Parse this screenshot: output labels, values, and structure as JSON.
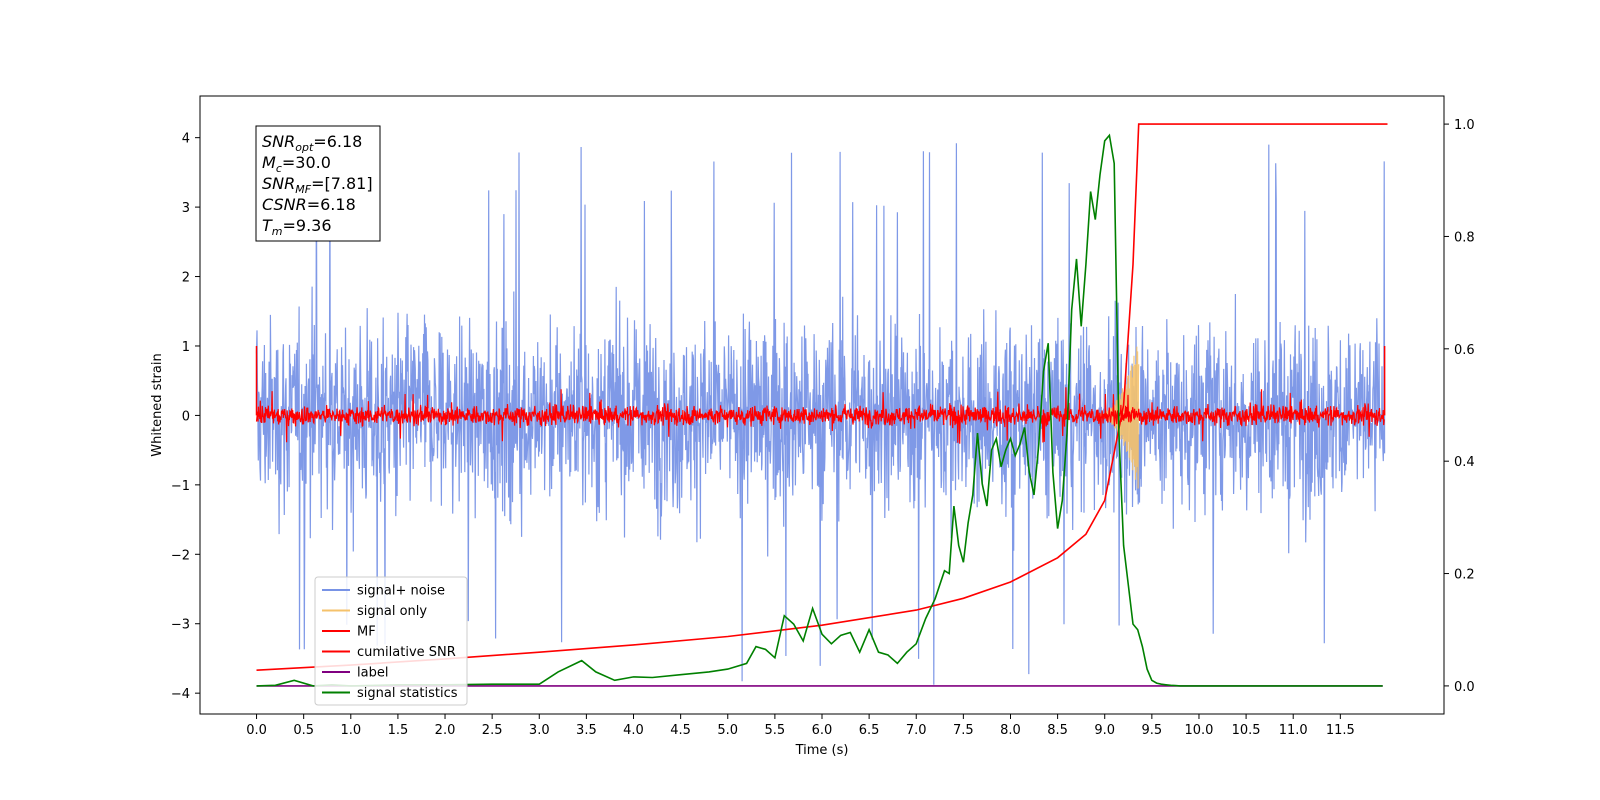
{
  "chart_data": {
    "type": "line",
    "xlabel": "Time (s)",
    "ylabel": "Whitened strain",
    "x_ticks": [
      "0.0",
      "0.5",
      "1.0",
      "1.5",
      "2.0",
      "2.5",
      "3.0",
      "3.5",
      "4.0",
      "4.5",
      "5.0",
      "5.5",
      "6.0",
      "6.5",
      "7.0",
      "7.5",
      "8.0",
      "8.5",
      "9.0",
      "9.5",
      "10.0",
      "10.5",
      "11.0",
      "11.5"
    ],
    "y_ticks_left": [
      "−4",
      "−3",
      "−2",
      "−1",
      "0",
      "1",
      "2",
      "3",
      "4"
    ],
    "y_ticks_right": [
      "0.0",
      "0.2",
      "0.4",
      "0.6",
      "0.8",
      "1.0"
    ],
    "xlim": [
      -0.6,
      12.6
    ],
    "ylim_left": [
      -4.3,
      4.6
    ],
    "ylim_right": [
      -0.05,
      1.05
    ],
    "legend_placement": "lower-left",
    "annotation": [
      {
        "name": "SNR",
        "sub": "opt",
        "value": "=6.18"
      },
      {
        "name": "M",
        "sub": "c",
        "value": "=30.0"
      },
      {
        "name": "SNR",
        "sub": "MF",
        "value": "=[7.81]"
      },
      {
        "name": "CSNR",
        "sub": "",
        "value": "=6.18"
      },
      {
        "name": "T",
        "sub": "m",
        "value": "=9.36"
      }
    ],
    "series": [
      {
        "name": "signal+ noise",
        "color": "#7893e6",
        "axis": "left",
        "description": "noise band roughly -2.6..2.6 with spikes to about ±4"
      },
      {
        "name": "signal only",
        "color": "#f5c26b",
        "axis": "left",
        "description": "chirp peaking near t=9.3 with amplitude about 1"
      },
      {
        "name": "MF",
        "color": "#ff0000",
        "axis": "left",
        "description": "noise band about ±0.3 around 0"
      },
      {
        "name": "cumilative SNR",
        "color": "#ff0000",
        "axis": "right",
        "x": [
          0.0,
          1.0,
          2.0,
          3.0,
          4.0,
          5.0,
          6.0,
          7.0,
          7.5,
          8.0,
          8.5,
          8.8,
          9.0,
          9.2,
          9.3,
          9.36,
          12.0
        ],
        "y": [
          0.028,
          0.037,
          0.048,
          0.06,
          0.073,
          0.088,
          0.108,
          0.135,
          0.156,
          0.185,
          0.228,
          0.27,
          0.33,
          0.5,
          0.75,
          1.0,
          1.0
        ]
      },
      {
        "name": "label",
        "color": "#800080",
        "axis": "right",
        "x": [
          0.0,
          11.95
        ],
        "y": [
          0.0,
          0.0
        ]
      },
      {
        "name": "signal statistics",
        "color": "#008000",
        "axis": "right",
        "x": [
          0.0,
          0.2,
          0.4,
          0.6,
          0.8,
          1.0,
          1.5,
          2.0,
          2.5,
          3.0,
          3.2,
          3.45,
          3.6,
          3.8,
          4.0,
          4.2,
          4.5,
          4.8,
          5.0,
          5.2,
          5.3,
          5.4,
          5.5,
          5.6,
          5.7,
          5.8,
          5.9,
          6.0,
          6.1,
          6.2,
          6.3,
          6.4,
          6.5,
          6.6,
          6.7,
          6.8,
          6.9,
          7.0,
          7.1,
          7.2,
          7.3,
          7.35,
          7.4,
          7.45,
          7.5,
          7.55,
          7.6,
          7.65,
          7.7,
          7.75,
          7.8,
          7.85,
          7.9,
          7.95,
          8.0,
          8.05,
          8.1,
          8.15,
          8.2,
          8.25,
          8.3,
          8.35,
          8.4,
          8.45,
          8.5,
          8.55,
          8.6,
          8.65,
          8.7,
          8.75,
          8.8,
          8.85,
          8.9,
          8.95,
          9.0,
          9.05,
          9.1,
          9.15,
          9.2,
          9.25,
          9.3,
          9.35,
          9.4,
          9.45,
          9.5,
          9.55,
          9.6,
          9.65,
          9.7,
          9.75,
          9.8,
          9.9,
          10.0,
          10.2,
          10.5,
          11.0,
          11.5,
          11.95
        ],
        "y": [
          0.0,
          0.001,
          0.01,
          0.0,
          0.002,
          0.0,
          0.002,
          0.002,
          0.003,
          0.003,
          0.025,
          0.045,
          0.025,
          0.01,
          0.016,
          0.015,
          0.02,
          0.025,
          0.03,
          0.04,
          0.07,
          0.065,
          0.05,
          0.125,
          0.11,
          0.08,
          0.138,
          0.092,
          0.075,
          0.09,
          0.095,
          0.06,
          0.1,
          0.06,
          0.055,
          0.04,
          0.06,
          0.075,
          0.12,
          0.155,
          0.205,
          0.2,
          0.32,
          0.25,
          0.22,
          0.29,
          0.34,
          0.45,
          0.36,
          0.32,
          0.42,
          0.44,
          0.39,
          0.42,
          0.44,
          0.41,
          0.43,
          0.46,
          0.38,
          0.34,
          0.43,
          0.56,
          0.61,
          0.38,
          0.28,
          0.33,
          0.45,
          0.67,
          0.76,
          0.64,
          0.75,
          0.88,
          0.83,
          0.91,
          0.97,
          0.98,
          0.93,
          0.45,
          0.25,
          0.18,
          0.11,
          0.1,
          0.07,
          0.03,
          0.01,
          0.005,
          0.003,
          0.002,
          0.001,
          0.0005,
          0.0,
          0.0,
          0.0,
          0.0,
          0.0,
          0.0,
          0.0,
          0.0
        ]
      }
    ]
  }
}
